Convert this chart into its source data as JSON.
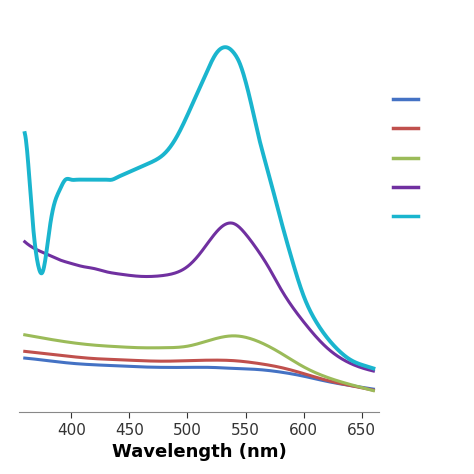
{
  "title": "",
  "xlabel": "Wavelength (nm)",
  "ylabel": "",
  "xlim": [
    355,
    665
  ],
  "ylim": [
    -0.02,
    0.75
  ],
  "background_color": "#ffffff",
  "line_colors": [
    "#4472c4",
    "#c0504d",
    "#9bbb59",
    "#7030a0",
    "#1ab5ce"
  ],
  "line_widths": [
    2.2,
    2.2,
    2.2,
    2.2,
    2.8
  ],
  "xticks": [
    400,
    450,
    500,
    550,
    600,
    650
  ],
  "xtick_labels": [
    "400",
    "450",
    "500",
    "550",
    "600",
    "650"
  ],
  "series": {
    "blue": {
      "x": [
        360,
        380,
        400,
        420,
        440,
        460,
        480,
        500,
        520,
        540,
        560,
        580,
        600,
        620,
        640,
        660
      ],
      "y": [
        0.085,
        0.08,
        0.075,
        0.072,
        0.07,
        0.068,
        0.067,
        0.067,
        0.067,
        0.065,
        0.063,
        0.058,
        0.05,
        0.04,
        0.032,
        0.025
      ]
    },
    "red": {
      "x": [
        360,
        380,
        400,
        420,
        440,
        460,
        480,
        500,
        520,
        540,
        560,
        580,
        600,
        620,
        640,
        660
      ],
      "y": [
        0.098,
        0.093,
        0.088,
        0.084,
        0.082,
        0.08,
        0.079,
        0.08,
        0.081,
        0.08,
        0.075,
        0.067,
        0.055,
        0.042,
        0.032,
        0.023
      ]
    },
    "green": {
      "x": [
        360,
        380,
        400,
        420,
        440,
        460,
        480,
        500,
        520,
        540,
        560,
        580,
        600,
        620,
        640,
        660
      ],
      "y": [
        0.13,
        0.122,
        0.115,
        0.11,
        0.107,
        0.105,
        0.105,
        0.108,
        0.12,
        0.128,
        0.118,
        0.095,
        0.068,
        0.048,
        0.034,
        0.022
      ]
    },
    "purple": {
      "x": [
        360,
        370,
        380,
        390,
        400,
        410,
        420,
        430,
        440,
        450,
        460,
        470,
        480,
        490,
        500,
        510,
        520,
        530,
        540,
        550,
        560,
        570,
        580,
        600,
        620,
        640,
        660
      ],
      "y": [
        0.31,
        0.295,
        0.285,
        0.275,
        0.268,
        0.262,
        0.258,
        0.252,
        0.248,
        0.245,
        0.243,
        0.243,
        0.245,
        0.25,
        0.262,
        0.285,
        0.315,
        0.34,
        0.345,
        0.325,
        0.295,
        0.26,
        0.22,
        0.155,
        0.105,
        0.075,
        0.06
      ]
    },
    "cyan": {
      "x": [
        360,
        363,
        366,
        369,
        372,
        375,
        378,
        381,
        385,
        390,
        395,
        400,
        405,
        410,
        415,
        420,
        425,
        430,
        435,
        440,
        445,
        450,
        455,
        460,
        470,
        480,
        490,
        500,
        510,
        515,
        520,
        525,
        530,
        535,
        540,
        545,
        550,
        555,
        560,
        570,
        580,
        590,
        600,
        610,
        620,
        630,
        640,
        650,
        660
      ],
      "y": [
        0.52,
        0.46,
        0.37,
        0.3,
        0.26,
        0.25,
        0.28,
        0.33,
        0.38,
        0.41,
        0.43,
        0.43,
        0.43,
        0.43,
        0.43,
        0.43,
        0.43,
        0.43,
        0.43,
        0.435,
        0.44,
        0.445,
        0.45,
        0.455,
        0.465,
        0.48,
        0.51,
        0.555,
        0.605,
        0.63,
        0.655,
        0.675,
        0.685,
        0.685,
        0.675,
        0.655,
        0.62,
        0.575,
        0.525,
        0.44,
        0.355,
        0.275,
        0.205,
        0.158,
        0.125,
        0.1,
        0.082,
        0.072,
        0.065
      ]
    }
  }
}
